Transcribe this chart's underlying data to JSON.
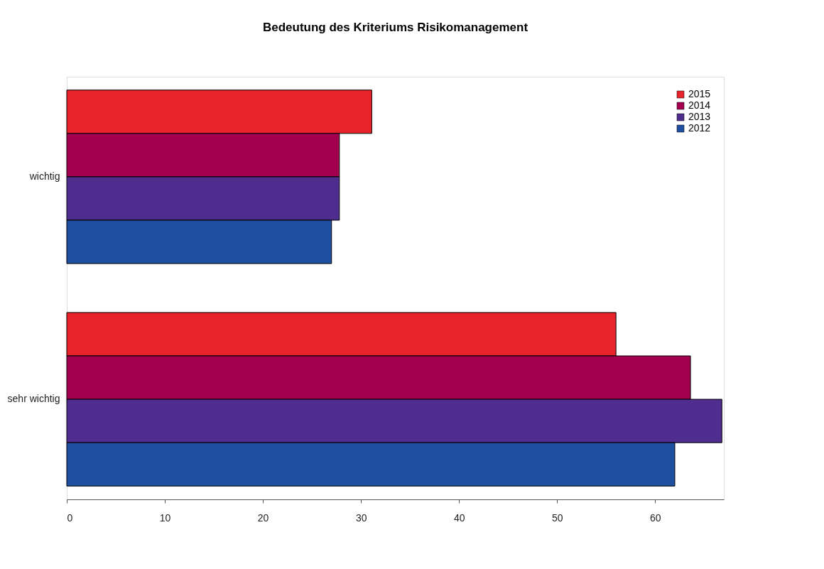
{
  "chart_data": {
    "type": "bar",
    "orientation": "horizontal",
    "title": "Bedeutung des Kriteriums Risikomanagement",
    "categories": [
      "wichtig",
      "sehr wichtig"
    ],
    "series": [
      {
        "name": "2015",
        "color": "#e8232b",
        "values": [
          31.1,
          56.0
        ]
      },
      {
        "name": "2014",
        "color": "#a5004f",
        "values": [
          27.8,
          63.6
        ]
      },
      {
        "name": "2013",
        "color": "#4f2d8f",
        "values": [
          27.8,
          66.8
        ]
      },
      {
        "name": "2012",
        "color": "#1f4fa0",
        "values": [
          27.0,
          62.0
        ]
      }
    ],
    "xlim": [
      0,
      67
    ],
    "xticks": [
      0,
      10,
      20,
      30,
      40,
      50,
      60
    ],
    "grid": false,
    "legend": "top right"
  }
}
